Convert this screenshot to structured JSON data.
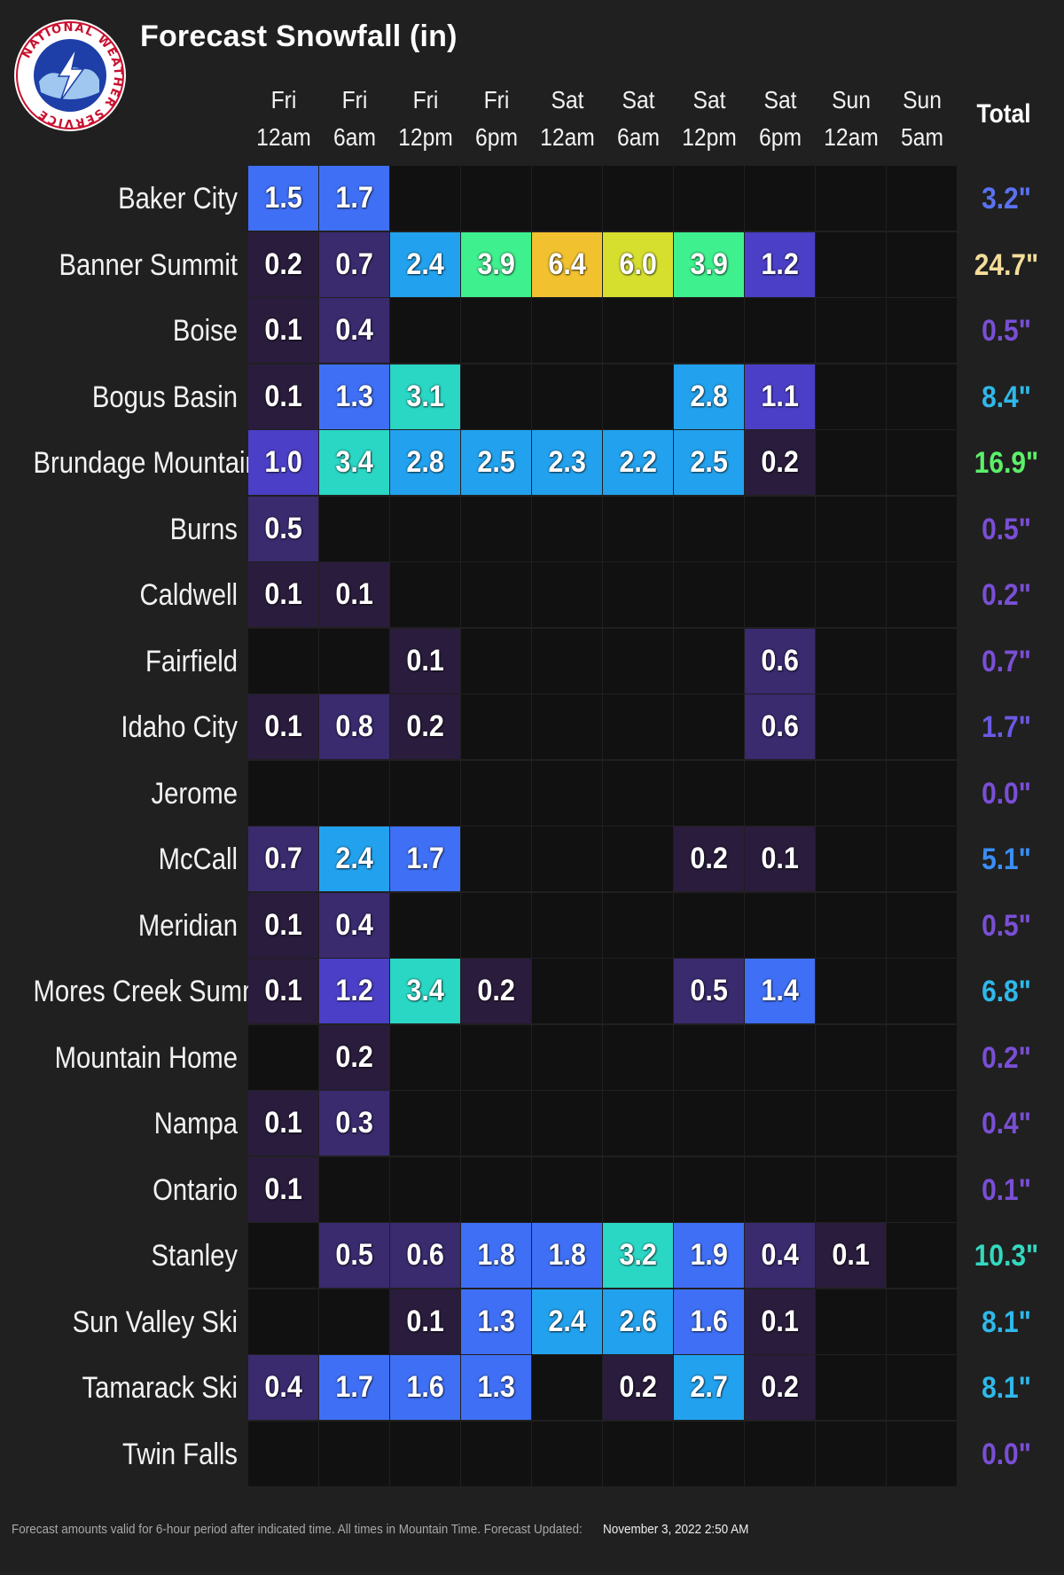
{
  "title": "Forecast Snowfall (in)",
  "logo": {
    "ring_text": "NATIONAL WEATHER SERVICE"
  },
  "columns": [
    {
      "day": "Fri",
      "time": "12am"
    },
    {
      "day": "Fri",
      "time": "6am"
    },
    {
      "day": "Fri",
      "time": "12pm"
    },
    {
      "day": "Fri",
      "time": "6pm"
    },
    {
      "day": "Sat",
      "time": "12am"
    },
    {
      "day": "Sat",
      "time": "6am"
    },
    {
      "day": "Sat",
      "time": "12pm"
    },
    {
      "day": "Sat",
      "time": "6pm"
    },
    {
      "day": "Sun",
      "time": "12am"
    },
    {
      "day": "Sun",
      "time": "5am"
    }
  ],
  "total_header": "Total",
  "footnote": "Forecast amounts valid for 6-hour period after indicated time. All times in Mountain Time. Forecast Updated:",
  "updated": "November 3, 2022 2:50 AM",
  "colors": {
    "background": "#202020",
    "empty_cell": "#111111",
    "scale": [
      "#2a1c3c",
      "#3a2a6e",
      "#4a3fc6",
      "#3f6ff5",
      "#22a2ee",
      "#2ad6c4",
      "#3ef08e",
      "#d6df2e",
      "#f2c12f"
    ]
  },
  "chart_data": {
    "type": "heatmap",
    "title": "Forecast Snowfall (in)",
    "x": [
      "Fri 12am",
      "Fri 6am",
      "Fri 12pm",
      "Fri 6pm",
      "Sat 12am",
      "Sat 6am",
      "Sat 12pm",
      "Sat 6pm",
      "Sun 12am",
      "Sun 5am"
    ],
    "locations": [
      {
        "name": "Baker City",
        "values": [
          "1.5",
          "1.7",
          "",
          "",
          "",
          "",
          "",
          "",
          "",
          ""
        ],
        "total": "3.2\""
      },
      {
        "name": "Banner Summit",
        "values": [
          "0.2",
          "0.7",
          "2.4",
          "3.9",
          "6.4",
          "6.0",
          "3.9",
          "1.2",
          "",
          ""
        ],
        "total": "24.7\""
      },
      {
        "name": "Boise",
        "values": [
          "0.1",
          "0.4",
          "",
          "",
          "",
          "",
          "",
          "",
          "",
          ""
        ],
        "total": "0.5\""
      },
      {
        "name": "Bogus Basin",
        "values": [
          "0.1",
          "1.3",
          "3.1",
          "",
          "",
          "",
          "2.8",
          "1.1",
          "",
          ""
        ],
        "total": "8.4\""
      },
      {
        "name": "Brundage Mountain",
        "values": [
          "1.0",
          "3.4",
          "2.8",
          "2.5",
          "2.3",
          "2.2",
          "2.5",
          "0.2",
          "",
          ""
        ],
        "total": "16.9\""
      },
      {
        "name": "Burns",
        "values": [
          "0.5",
          "",
          "",
          "",
          "",
          "",
          "",
          "",
          "",
          ""
        ],
        "total": "0.5\""
      },
      {
        "name": "Caldwell",
        "values": [
          "0.1",
          "0.1",
          "",
          "",
          "",
          "",
          "",
          "",
          "",
          ""
        ],
        "total": "0.2\""
      },
      {
        "name": "Fairfield",
        "values": [
          "",
          "",
          "0.1",
          "",
          "",
          "",
          "",
          "0.6",
          "",
          ""
        ],
        "total": "0.7\""
      },
      {
        "name": "Idaho City",
        "values": [
          "0.1",
          "0.8",
          "0.2",
          "",
          "",
          "",
          "",
          "0.6",
          "",
          ""
        ],
        "total": "1.7\""
      },
      {
        "name": "Jerome",
        "values": [
          "",
          "",
          "",
          "",
          "",
          "",
          "",
          "",
          "",
          ""
        ],
        "total": "0.0\""
      },
      {
        "name": "McCall",
        "values": [
          "0.7",
          "2.4",
          "1.7",
          "",
          "",
          "",
          "0.2",
          "0.1",
          "",
          ""
        ],
        "total": "5.1\""
      },
      {
        "name": "Meridian",
        "values": [
          "0.1",
          "0.4",
          "",
          "",
          "",
          "",
          "",
          "",
          "",
          ""
        ],
        "total": "0.5\""
      },
      {
        "name": "Mores Creek Summit",
        "values": [
          "0.1",
          "1.2",
          "3.4",
          "0.2",
          "",
          "",
          "0.5",
          "1.4",
          "",
          ""
        ],
        "total": "6.8\""
      },
      {
        "name": "Mountain Home",
        "values": [
          "",
          "0.2",
          "",
          "",
          "",
          "",
          "",
          "",
          "",
          ""
        ],
        "total": "0.2\""
      },
      {
        "name": "Nampa",
        "values": [
          "0.1",
          "0.3",
          "",
          "",
          "",
          "",
          "",
          "",
          "",
          ""
        ],
        "total": "0.4\""
      },
      {
        "name": "Ontario",
        "values": [
          "0.1",
          "",
          "",
          "",
          "",
          "",
          "",
          "",
          "",
          ""
        ],
        "total": "0.1\""
      },
      {
        "name": "Stanley",
        "values": [
          "",
          "0.5",
          "0.6",
          "1.8",
          "1.8",
          "3.2",
          "1.9",
          "0.4",
          "0.1",
          ""
        ],
        "total": "10.3\""
      },
      {
        "name": "Sun Valley Ski",
        "values": [
          "",
          "",
          "0.1",
          "1.3",
          "2.4",
          "2.6",
          "1.6",
          "0.1",
          "",
          ""
        ],
        "total": "8.1\""
      },
      {
        "name": "Tamarack Ski",
        "values": [
          "0.4",
          "1.7",
          "1.6",
          "1.3",
          "",
          "0.2",
          "2.7",
          "0.2",
          "",
          ""
        ],
        "total": "8.1\""
      },
      {
        "name": "Twin Falls",
        "values": [
          "",
          "",
          "",
          "",
          "",
          "",
          "",
          "",
          "",
          ""
        ],
        "total": "0.0\""
      }
    ],
    "totals_column": "Total"
  }
}
